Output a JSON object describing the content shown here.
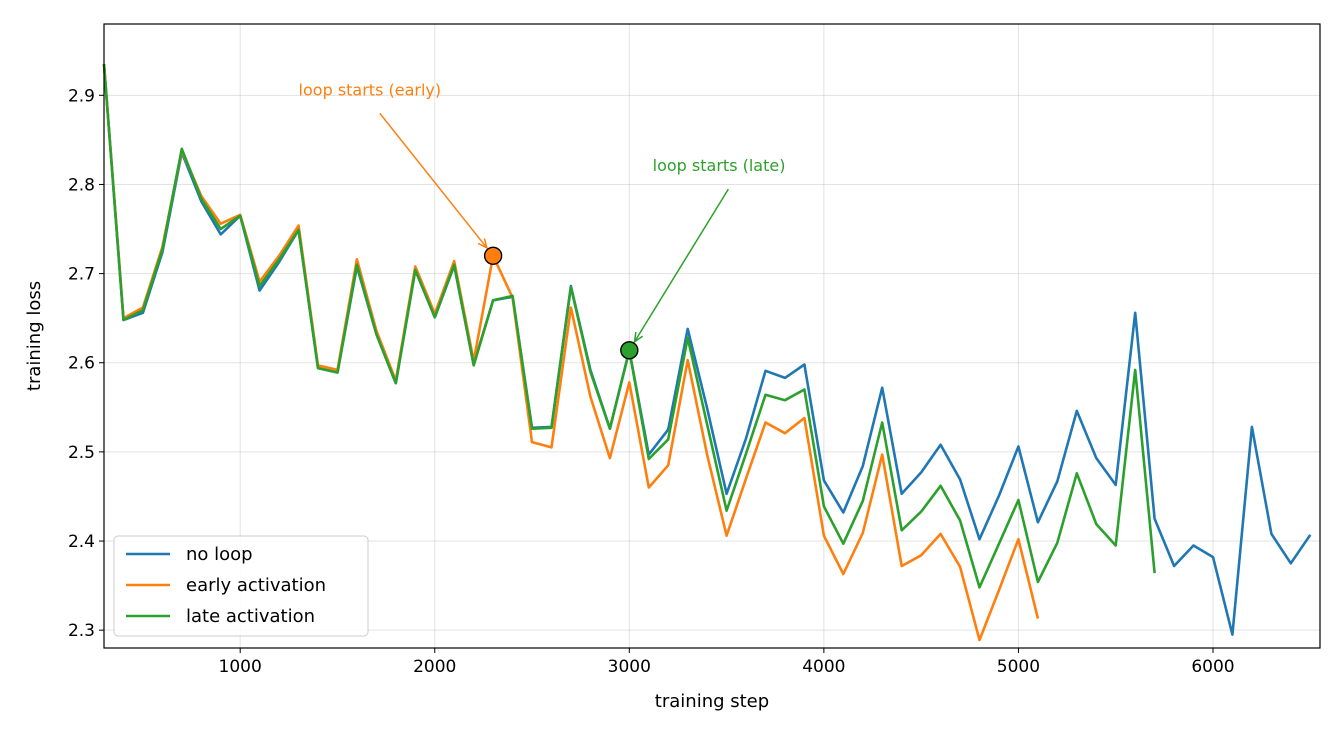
{
  "chart_data": {
    "type": "line",
    "xlabel": "training step",
    "ylabel": "training loss",
    "xlim": [
      300,
      6550
    ],
    "ylim": [
      2.28,
      2.98
    ],
    "xticks": [
      1000,
      2000,
      3000,
      4000,
      5000,
      6000
    ],
    "yticks": [
      2.3,
      2.4,
      2.5,
      2.6,
      2.7,
      2.8,
      2.9
    ],
    "xtick_labels": [
      "1000",
      "2000",
      "3000",
      "4000",
      "5000",
      "6000"
    ],
    "ytick_labels": [
      "2.3",
      "2.4",
      "2.5",
      "2.6",
      "2.7",
      "2.8",
      "2.9"
    ],
    "grid": true,
    "legend_position": "lower-left",
    "series": [
      {
        "name": "no loop",
        "color": "#1f77b4",
        "x": [
          300,
          400,
          500,
          600,
          700,
          800,
          900,
          1000,
          1100,
          1200,
          1300,
          1400,
          1500,
          1600,
          1700,
          1800,
          1900,
          2000,
          2100,
          2200,
          2300,
          2400,
          2500,
          2600,
          2700,
          2800,
          2900,
          3000,
          3100,
          3200,
          3300,
          3400,
          3500,
          3600,
          3700,
          3800,
          3900,
          4000,
          4100,
          4200,
          4300,
          4400,
          4500,
          4600,
          4700,
          4800,
          4900,
          5000,
          5100,
          5200,
          5300,
          5400,
          5500,
          5600,
          5700,
          5800,
          5900,
          6000,
          6100,
          6200,
          6300,
          6400,
          6500
        ],
        "y": [
          2.935,
          2.648,
          2.656,
          2.724,
          2.836,
          2.781,
          2.744,
          2.765,
          2.681,
          2.713,
          2.749,
          2.594,
          2.589,
          2.708,
          2.632,
          2.577,
          2.704,
          2.651,
          2.709,
          2.598,
          2.67,
          2.674,
          2.527,
          2.528,
          2.686,
          2.592,
          2.526,
          2.614,
          2.497,
          2.525,
          2.638,
          2.549,
          2.453,
          2.515,
          2.591,
          2.583,
          2.598,
          2.468,
          2.432,
          2.484,
          2.572,
          2.453,
          2.477,
          2.508,
          2.469,
          2.402,
          2.451,
          2.506,
          2.421,
          2.467,
          2.546,
          2.493,
          2.463,
          2.656,
          2.425,
          2.372,
          2.395,
          2.382,
          2.295,
          2.528,
          2.408,
          2.375,
          2.407
        ]
      },
      {
        "name": "early activation",
        "color": "#ff7f0e",
        "x": [
          300,
          400,
          500,
          600,
          700,
          800,
          900,
          1000,
          1100,
          1200,
          1300,
          1400,
          1500,
          1600,
          1700,
          1800,
          1900,
          2000,
          2100,
          2200,
          2300,
          2400,
          2500,
          2600,
          2700,
          2800,
          2900,
          3000,
          3100,
          3200,
          3300,
          3400,
          3500,
          3600,
          3700,
          3800,
          3900,
          4000,
          4100,
          4200,
          4300,
          4400,
          4500,
          4600,
          4700,
          4800,
          4900,
          5000,
          5100
        ],
        "y": [
          2.935,
          2.65,
          2.662,
          2.73,
          2.838,
          2.787,
          2.756,
          2.766,
          2.691,
          2.72,
          2.754,
          2.597,
          2.592,
          2.716,
          2.636,
          2.58,
          2.708,
          2.655,
          2.714,
          2.602,
          2.72,
          2.673,
          2.511,
          2.505,
          2.662,
          2.562,
          2.493,
          2.578,
          2.46,
          2.485,
          2.603,
          2.497,
          2.406,
          2.47,
          2.533,
          2.521,
          2.538,
          2.406,
          2.363,
          2.409,
          2.497,
          2.372,
          2.384,
          2.408,
          2.371,
          2.289,
          2.345,
          2.402,
          2.313
        ]
      },
      {
        "name": "late activation",
        "color": "#2ca02c",
        "x": [
          300,
          400,
          500,
          600,
          700,
          800,
          900,
          1000,
          1100,
          1200,
          1300,
          1400,
          1500,
          1600,
          1700,
          1800,
          1900,
          2000,
          2100,
          2200,
          2300,
          2400,
          2500,
          2600,
          2700,
          2800,
          2900,
          3000,
          3100,
          3200,
          3300,
          3400,
          3500,
          3600,
          3700,
          3800,
          3900,
          4000,
          4100,
          4200,
          4300,
          4400,
          4500,
          4600,
          4700,
          4800,
          4900,
          5000,
          5100,
          5200,
          5300,
          5400,
          5500,
          5600,
          5700
        ],
        "y": [
          2.935,
          2.648,
          2.659,
          2.727,
          2.84,
          2.784,
          2.75,
          2.765,
          2.686,
          2.716,
          2.749,
          2.594,
          2.589,
          2.71,
          2.632,
          2.577,
          2.704,
          2.651,
          2.71,
          2.597,
          2.67,
          2.675,
          2.526,
          2.527,
          2.685,
          2.59,
          2.526,
          2.614,
          2.492,
          2.514,
          2.628,
          2.531,
          2.434,
          2.498,
          2.564,
          2.558,
          2.57,
          2.439,
          2.397,
          2.445,
          2.533,
          2.412,
          2.433,
          2.462,
          2.423,
          2.348,
          2.397,
          2.446,
          2.354,
          2.398,
          2.476,
          2.419,
          2.395,
          2.592,
          2.364
        ]
      }
    ],
    "annotations": [
      {
        "text": "loop starts (early)",
        "color": "#ff7f0e",
        "point": [
          2300,
          2.72
        ],
        "text_pos": [
          1300,
          2.9
        ]
      },
      {
        "text": "loop starts (late)",
        "color": "#2ca02c",
        "point": [
          3000,
          2.614
        ],
        "text_pos": [
          3120,
          2.815
        ]
      }
    ]
  }
}
